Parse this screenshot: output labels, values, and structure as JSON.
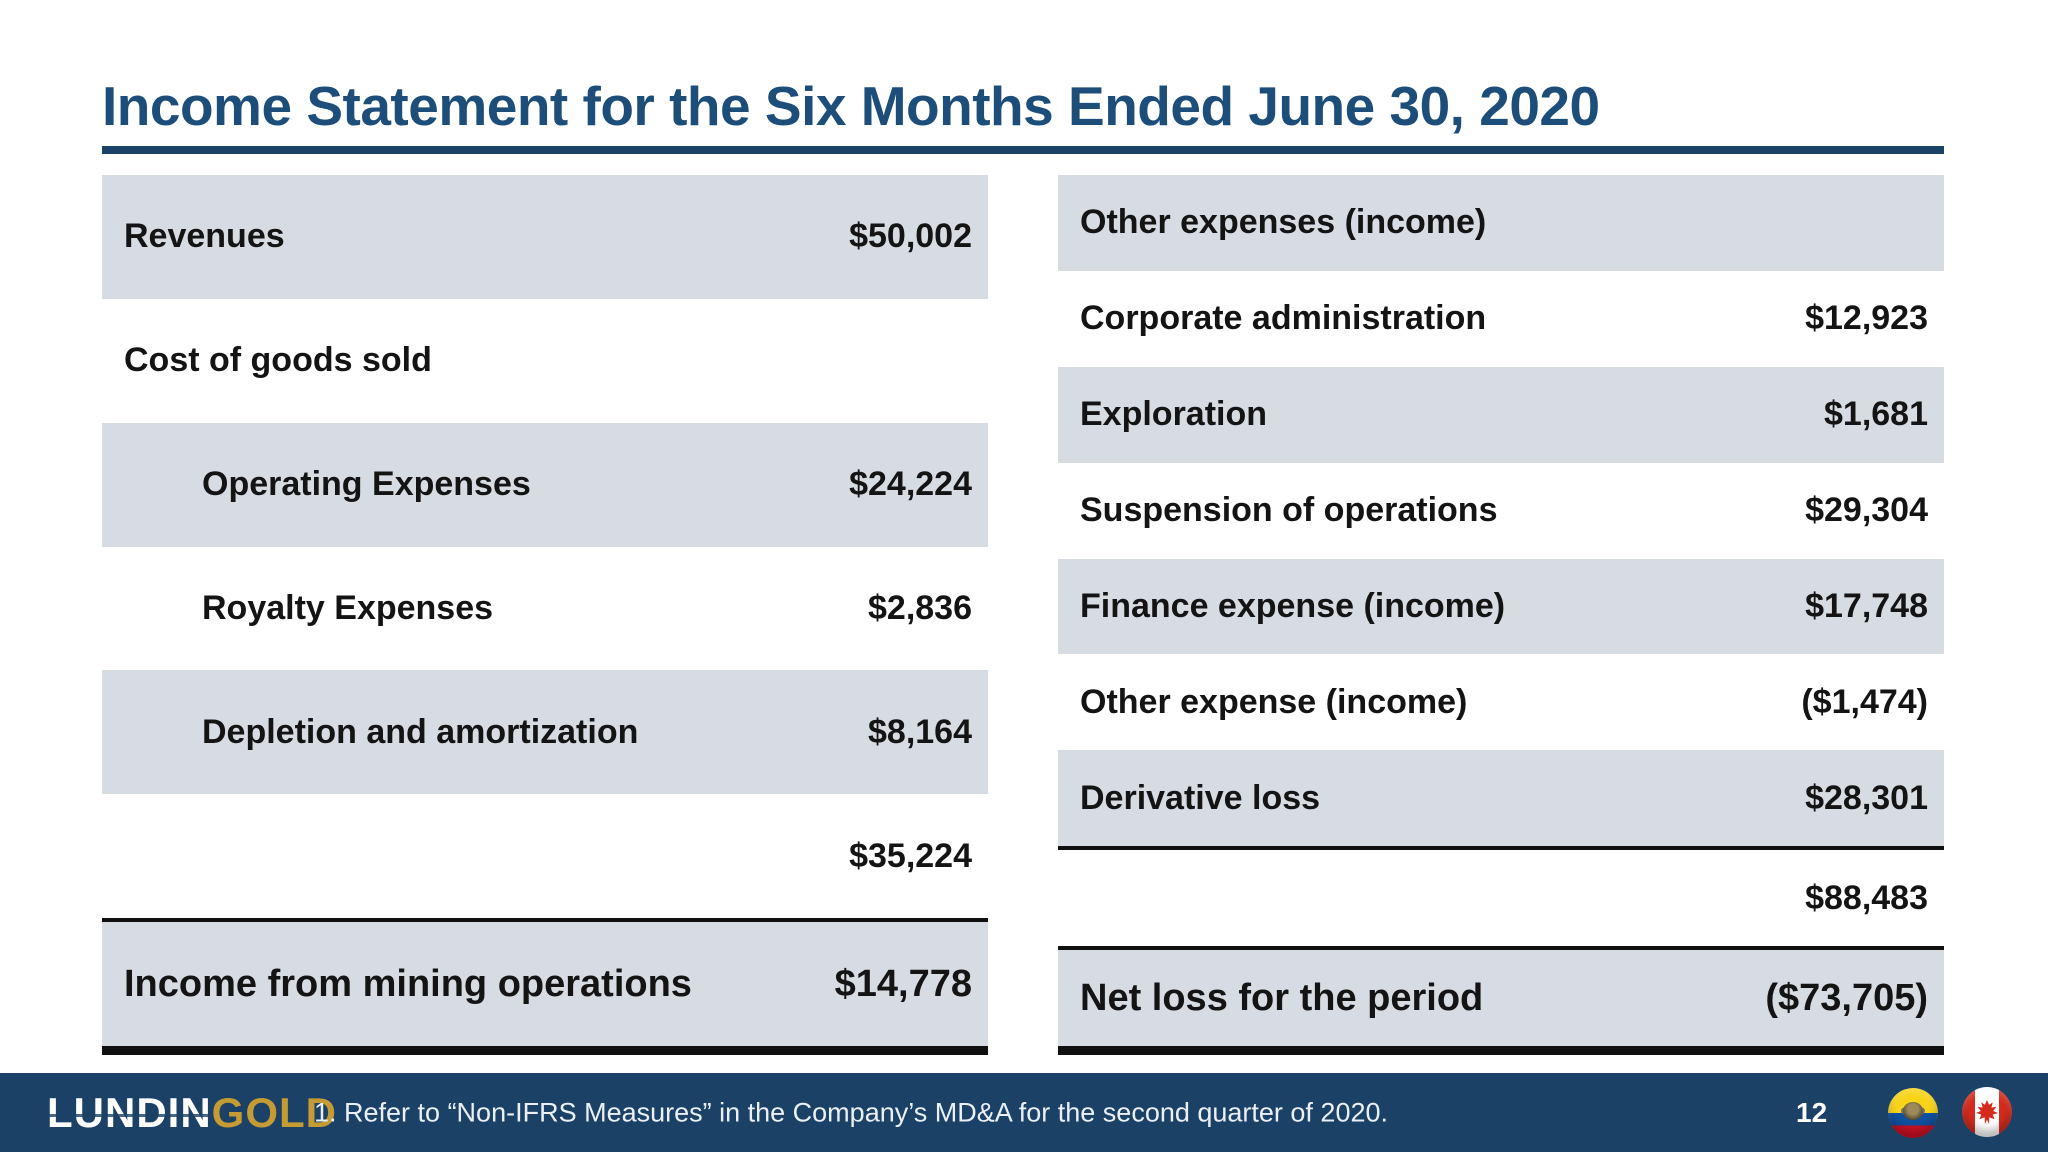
{
  "slide": {
    "title": "Income Statement for the Six Months Ended June 30, 2020"
  },
  "left_table": {
    "rows": [
      {
        "label": "Revenues",
        "value": "$50,002",
        "shaded": true
      },
      {
        "label": "Cost of goods sold",
        "value": "",
        "shaded": false
      },
      {
        "label": "Operating Expenses",
        "value": "$24,224",
        "shaded": true,
        "indent": true
      },
      {
        "label": "Royalty Expenses",
        "value": "$2,836",
        "shaded": false,
        "indent": true
      },
      {
        "label": "Depletion and amortization",
        "value": "$8,164",
        "shaded": true,
        "indent": true
      },
      {
        "label": "",
        "value": "$35,224",
        "shaded": false
      },
      {
        "label": "Income from mining operations",
        "value": "$14,778",
        "shaded": true,
        "emphasis": true,
        "border_top": "thin",
        "border_bottom": "thick"
      }
    ]
  },
  "right_table": {
    "rows": [
      {
        "label": "Other expenses (income)",
        "value": "",
        "shaded": true
      },
      {
        "label": "Corporate administration",
        "value": "$12,923",
        "shaded": false
      },
      {
        "label": "Exploration",
        "value": "$1,681",
        "shaded": true
      },
      {
        "label": "Suspension of operations",
        "value": "$29,304",
        "shaded": false
      },
      {
        "label": "Finance expense (income)",
        "value": "$17,748",
        "shaded": true
      },
      {
        "label": "Other expense (income)",
        "value": "($1,474)",
        "shaded": false
      },
      {
        "label": "Derivative loss",
        "value": "$28,301",
        "shaded": true,
        "border_bottom": "thin"
      },
      {
        "label": "",
        "value": "$88,483",
        "shaded": false
      },
      {
        "label": "Net loss for the period",
        "value": "($73,705)",
        "shaded": true,
        "emphasis": true,
        "border_top": "thin",
        "border_bottom": "thick"
      }
    ]
  },
  "footer": {
    "logo_lundin": "LUNDIN",
    "logo_gold": "GOLD",
    "footnote": "1. Refer to “Non-IFRS Measures” in the Company’s MD&A for the second quarter of 2020.",
    "page_number": "12",
    "flag_icons": [
      "ecuador-flag-icon",
      "canada-flag-icon"
    ]
  },
  "colors": {
    "title_navy": "#1D4E79",
    "rule_navy": "#1B4368",
    "row_shade_gray": "#D7DBE2",
    "row_text": "#141414",
    "footer_navy": "#1B4166",
    "logo_gold": "#C59B33",
    "ecuador_yellow": "#F7D417",
    "ecuador_blue": "#10509F",
    "flag_red": "#CE1126",
    "canada_red": "#D52B1E"
  }
}
